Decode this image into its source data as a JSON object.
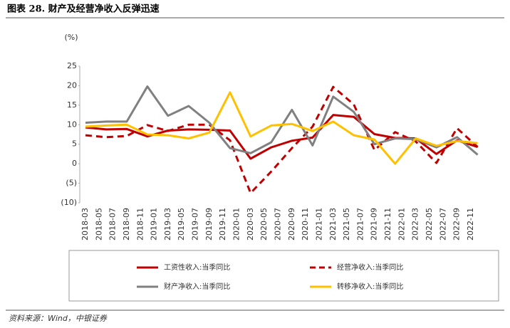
{
  "chart_data": {
    "type": "line",
    "title": "图表 28. 财产及经营净收入反弹迅速",
    "y_label": "(%)",
    "source": "资料来源：Wind，中银证券",
    "categories": [
      "2018-03",
      "2018-05",
      "2018-07",
      "2018-09",
      "2018-11",
      "2019-01",
      "2019-03",
      "2019-05",
      "2019-07",
      "2019-09",
      "2019-11",
      "2020-01",
      "2020-03",
      "2020-05",
      "2020-07",
      "2020-09",
      "2020-11",
      "2021-01",
      "2021-03",
      "2021-05",
      "2021-07",
      "2021-09",
      "2021-11",
      "2022-01",
      "2022-03",
      "2022-05",
      "2022-07",
      "2022-09",
      "2022-11"
    ],
    "x": [
      "2018-03",
      "2018-06",
      "2018-09",
      "2018-12",
      "2019-03",
      "2019-06",
      "2019-09",
      "2019-12",
      "2020-03",
      "2020-06",
      "2020-09",
      "2020-12",
      "2021-03",
      "2021-06",
      "2021-09",
      "2021-12",
      "2022-03",
      "2022-06",
      "2022-09",
      "2022-12"
    ],
    "series": [
      {
        "name": "工资性收入:当季同比",
        "color": "#c00000",
        "dash": false,
        "values": [
          9.3,
          8.8,
          8.9,
          7.0,
          8.5,
          8.8,
          8.7,
          8.5,
          1.3,
          4.2,
          5.9,
          6.7,
          12.5,
          12.0,
          7.6,
          6.6,
          6.5,
          2.5,
          6.0,
          4.3
        ]
      },
      {
        "name": "经营净收入:当季同比",
        "color": "#c00000",
        "dash": true,
        "values": [
          7.3,
          6.8,
          7.1,
          9.9,
          8.4,
          10.0,
          10.0,
          6.0,
          -7.5,
          -2.0,
          4.0,
          9.5,
          19.7,
          15.2,
          3.5,
          8.1,
          5.7,
          0.2,
          9.1,
          4.3
        ]
      },
      {
        "name": "财产净收入:当季同比",
        "color": "#808080",
        "dash": false,
        "values": [
          10.5,
          10.8,
          10.8,
          19.8,
          12.3,
          14.8,
          10.5,
          4.0,
          2.7,
          5.5,
          13.8,
          4.7,
          17.2,
          13.3,
          5.0,
          6.5,
          6.3,
          4.2,
          6.8,
          2.3
        ]
      },
      {
        "name": "转移净收入:当季同比",
        "color": "#ffc000",
        "dash": false,
        "values": [
          9.5,
          9.8,
          10.0,
          7.5,
          7.3,
          6.5,
          8.0,
          18.3,
          7.0,
          9.8,
          10.2,
          8.4,
          10.8,
          7.3,
          6.2,
          0.0,
          6.5,
          4.6,
          5.8,
          5.3
        ]
      }
    ],
    "ylim": [
      -10,
      25
    ],
    "yticks": [
      {
        "value": -10,
        "label": "(10)"
      },
      {
        "value": -5,
        "label": "(5)"
      },
      0,
      5,
      10,
      15,
      20,
      25
    ],
    "legend": "bottom"
  }
}
